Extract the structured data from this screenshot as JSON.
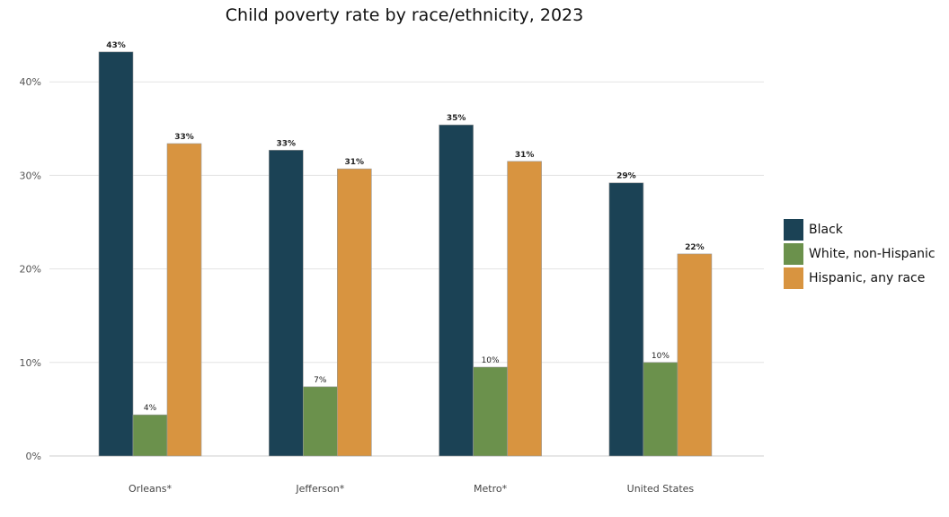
{
  "chart_data": {
    "type": "bar",
    "title": "Child poverty rate by race/ethnicity, 2023",
    "xlabel": "",
    "ylabel": "",
    "categories": [
      "Orleans*",
      "Jefferson*",
      "Metro*",
      "United States"
    ],
    "series": [
      {
        "name": "Black",
        "color": "#1b4255",
        "values": [
          43.2,
          32.7,
          35.4,
          29.2
        ],
        "labels": [
          "43%",
          "33%",
          "35%",
          "29%"
        ]
      },
      {
        "name": "White, non-Hispanic",
        "color": "#6b914c",
        "values": [
          4.4,
          7.4,
          9.5,
          10.0
        ],
        "labels": [
          "4%",
          "7%",
          "10%",
          "10%"
        ]
      },
      {
        "name": "Hispanic, any race",
        "color": "#d89440",
        "values": [
          33.4,
          30.7,
          31.5,
          21.6
        ],
        "labels": [
          "33%",
          "31%",
          "31%",
          "22%"
        ]
      }
    ],
    "ylim": [
      0,
      45
    ],
    "yticks": [
      0,
      10,
      20,
      30,
      40
    ],
    "ytick_labels": [
      "0%",
      "10%",
      "20%",
      "30%",
      "40%"
    ],
    "grid": true,
    "legend_position": "right"
  }
}
